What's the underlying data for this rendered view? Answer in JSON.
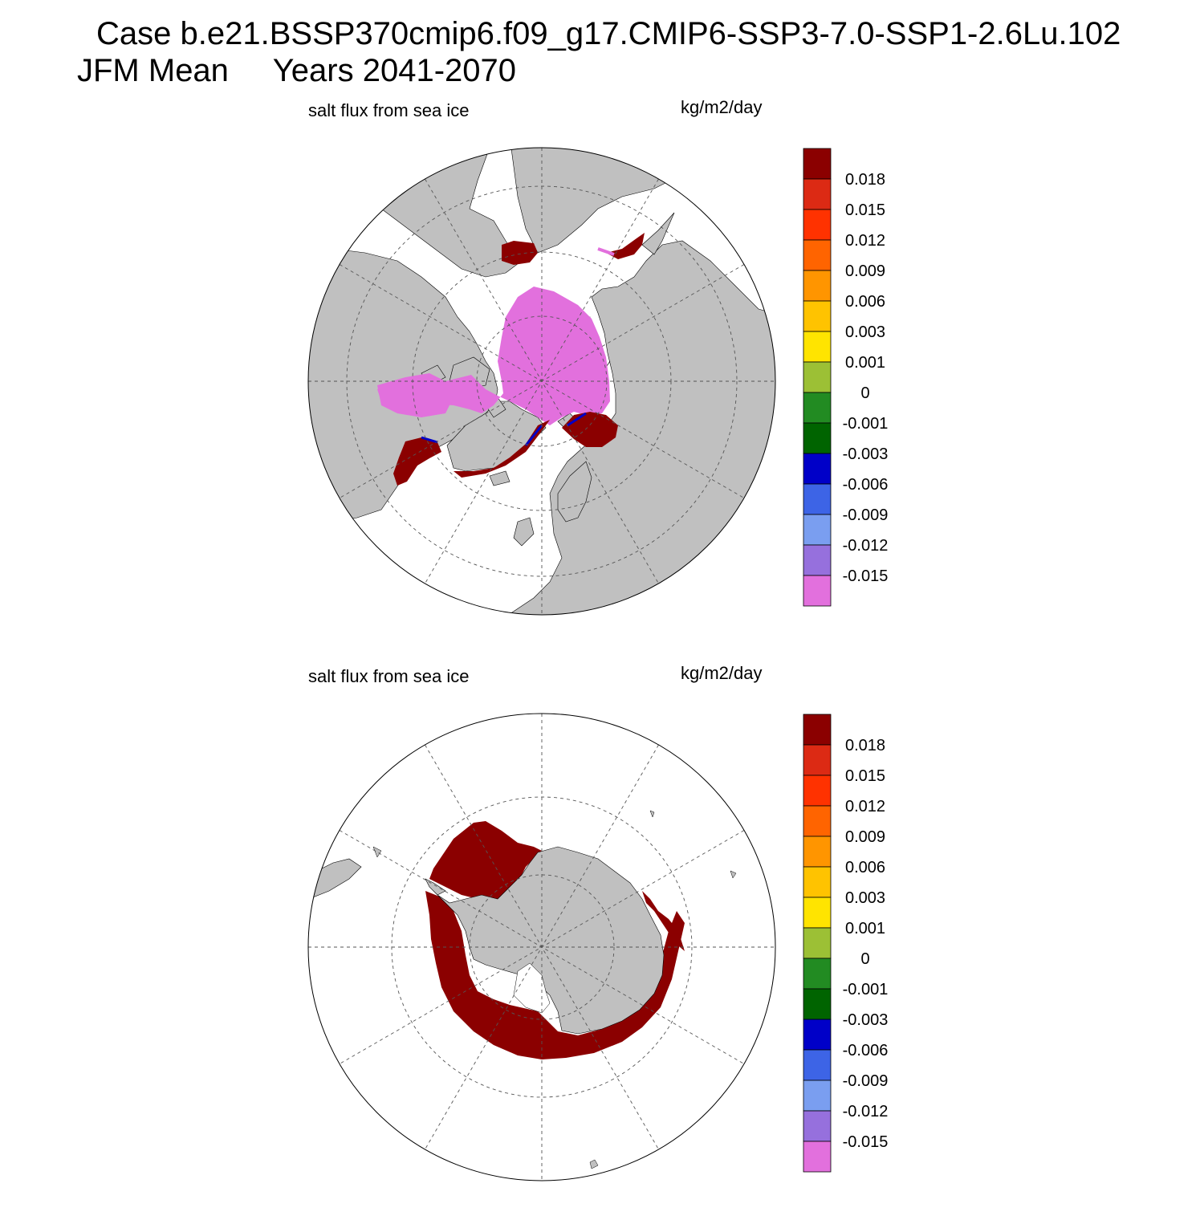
{
  "title": {
    "line1": "Case b.e21.BSSP370cmip6.f09_g17.CMIP6-SSP3-7.0-SSP1-2.6Lu.102",
    "line2": "JFM Mean     Years 2041-2070"
  },
  "colors": {
    "land": "#c0c0c0",
    "ocean_background": "#ffffff",
    "grid_line": "#555555",
    "coastline": "#000000"
  },
  "colorbar": {
    "bins": [
      "#e270dd",
      "#9670dd",
      "#7a9ef0",
      "#3d64e6",
      "#0000c8",
      "#006400",
      "#228b22",
      "#9cc035",
      "#ffe400",
      "#ffc300",
      "#ff9500",
      "#ff6400",
      "#ff3200",
      "#dc2a14",
      "#8b0000"
    ],
    "tick_labels": [
      "-0.015",
      "-0.012",
      "-0.009",
      "-0.006",
      "-0.003",
      "-0.001",
      "0",
      "0.001",
      "0.003",
      "0.006",
      "0.009",
      "0.012",
      "0.015",
      "0.018"
    ]
  },
  "panels": [
    {
      "id": "north",
      "projection": "north polar stereographic",
      "variable_label": "salt flux from sea ice",
      "units": "kg/m2/day",
      "regions": [
        {
          "region": "Arctic Ocean interior",
          "category": "< -0.015",
          "color": "#e270dd"
        },
        {
          "region": "Labrador Sea / Davis Strait margin",
          "category": "> 0.018",
          "color": "#8b0000"
        },
        {
          "region": "Greenland Sea margin",
          "category": "> 0.018",
          "color": "#8b0000"
        },
        {
          "region": "Barents Sea margin",
          "category": "> 0.018",
          "color": "#8b0000"
        },
        {
          "region": "Bering Sea",
          "category": "> 0.018",
          "color": "#8b0000"
        },
        {
          "region": "Sea of Okhotsk",
          "category": "> 0.018",
          "color": "#8b0000"
        }
      ]
    },
    {
      "id": "south",
      "projection": "south polar stereographic",
      "variable_label": "salt flux from sea ice",
      "units": "kg/m2/day",
      "regions": [
        {
          "region": "Weddell Sea",
          "category": "> 0.018",
          "color": "#8b0000"
        },
        {
          "region": "Ross / Amundsen / Bellingshausen Seas",
          "category": "> 0.018",
          "color": "#8b0000"
        },
        {
          "region": "East Antarctic coastal band",
          "category": "> 0.018",
          "color": "#8b0000"
        }
      ]
    }
  ]
}
